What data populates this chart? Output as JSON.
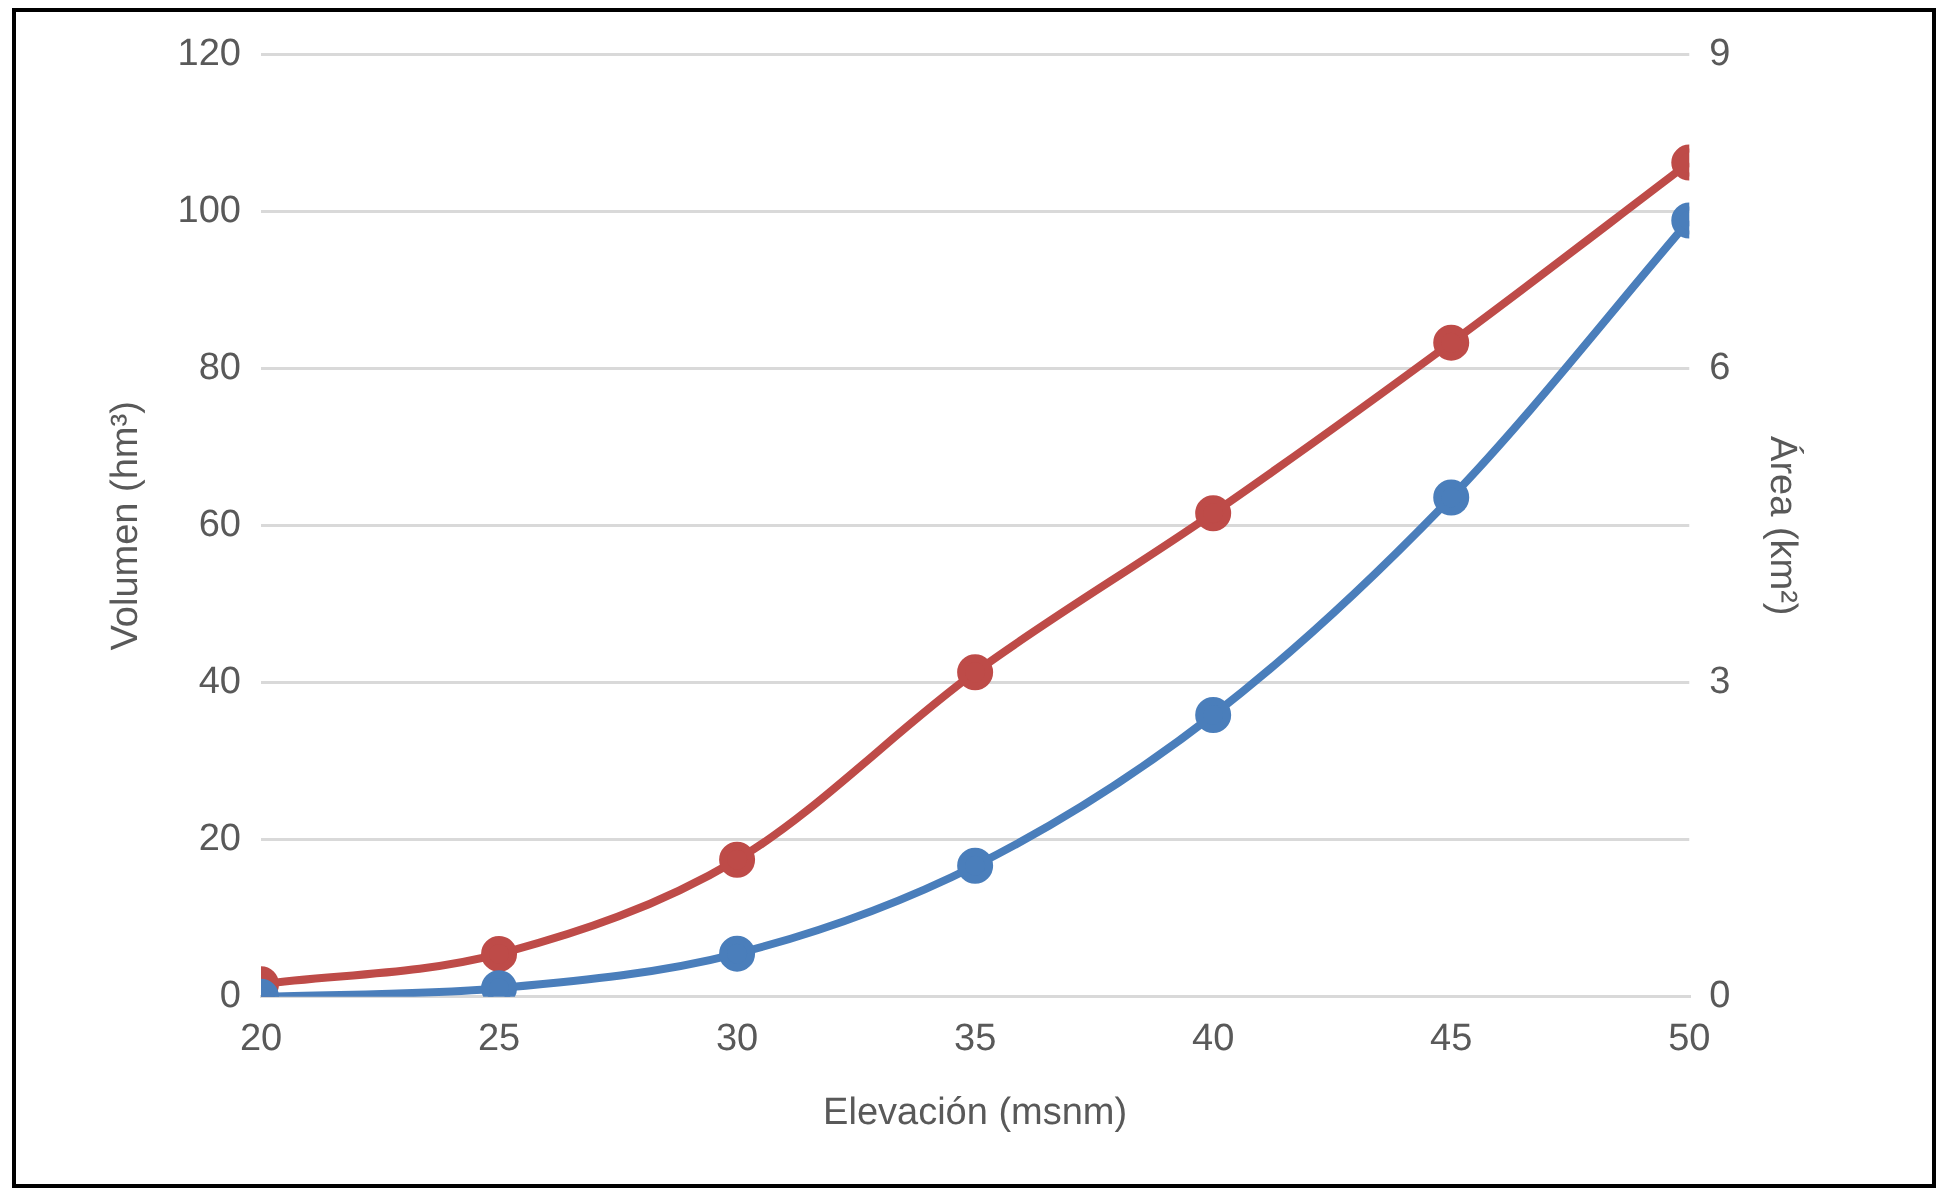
{
  "chart_data": {
    "type": "line",
    "xlabel": "Elevación (msnm)",
    "ylabel": "Volumen (hm³)",
    "y2label": "Área (km²)",
    "x": [
      20,
      25,
      30,
      35,
      40,
      45,
      50
    ],
    "series": [
      {
        "color": "#4a7ebb",
        "values": [
          0,
          1.1,
          5.5,
          16.7,
          35.9,
          63.6,
          98.9
        ]
      },
      {
        "color": "#be4b48",
        "axis": "y2",
        "values": [
          0.12,
          0.41,
          1.31,
          3.1,
          4.62,
          6.25,
          7.97
        ]
      }
    ],
    "xlim": [
      20,
      50
    ],
    "xticks": [
      20,
      25,
      30,
      35,
      40,
      45,
      50
    ],
    "ylim": [
      0,
      120
    ],
    "yticks": [
      0,
      20,
      40,
      60,
      80,
      100,
      120
    ],
    "y2lim": [
      0,
      9
    ],
    "y2ticks": [
      0,
      3,
      6,
      9
    ],
    "grid": "y",
    "legend": false,
    "marker": "circle",
    "line_style": "solid"
  }
}
